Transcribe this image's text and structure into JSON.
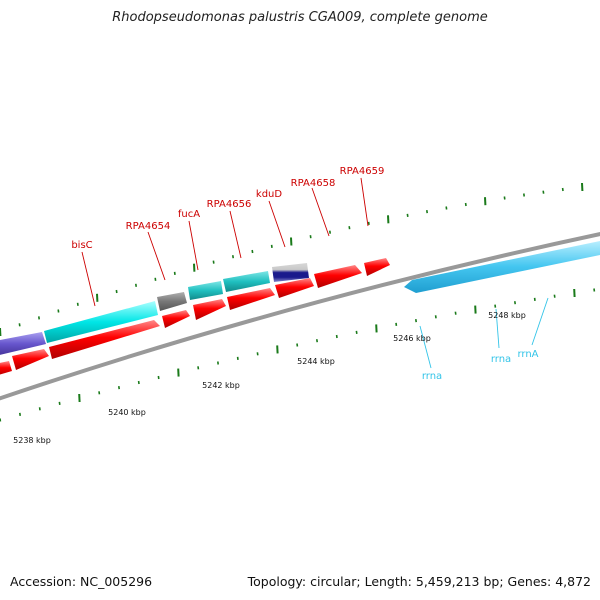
{
  "title": "Rhodopseudomonas palustris CGA009, complete genome",
  "footer": {
    "accession": "Accession: NC_005296",
    "summary": "Topology: circular; Length: 5,459,213 bp; Genes: 4,872"
  },
  "colors": {
    "backbone": "#8a8a8a",
    "forward_cds": "#ff0000",
    "reverse_cds": "#ff0000",
    "cyan_cds": "#22dddd",
    "teal_cds": "#20c4c4",
    "gray_cds": "#777777",
    "purple_cds": "#6655cc",
    "navy_cds": "#1a1a8c",
    "rrna": "#55ccf0",
    "gene_label": "#cc0000",
    "rna_label": "#33c4e8",
    "tick": "#1a7a1a"
  },
  "gene_labels": [
    "bisC",
    "RPA4654",
    "fucA",
    "RPA4656",
    "kduD",
    "RPA4658",
    "RPA4659"
  ],
  "rna_labels": [
    "rrna",
    "rrna",
    "rrnA"
  ],
  "kbp_labels": [
    "5238 kbp",
    "5240 kbp",
    "5242 kbp",
    "5244 kbp",
    "5246 kbp",
    "5248 kbp"
  ]
}
